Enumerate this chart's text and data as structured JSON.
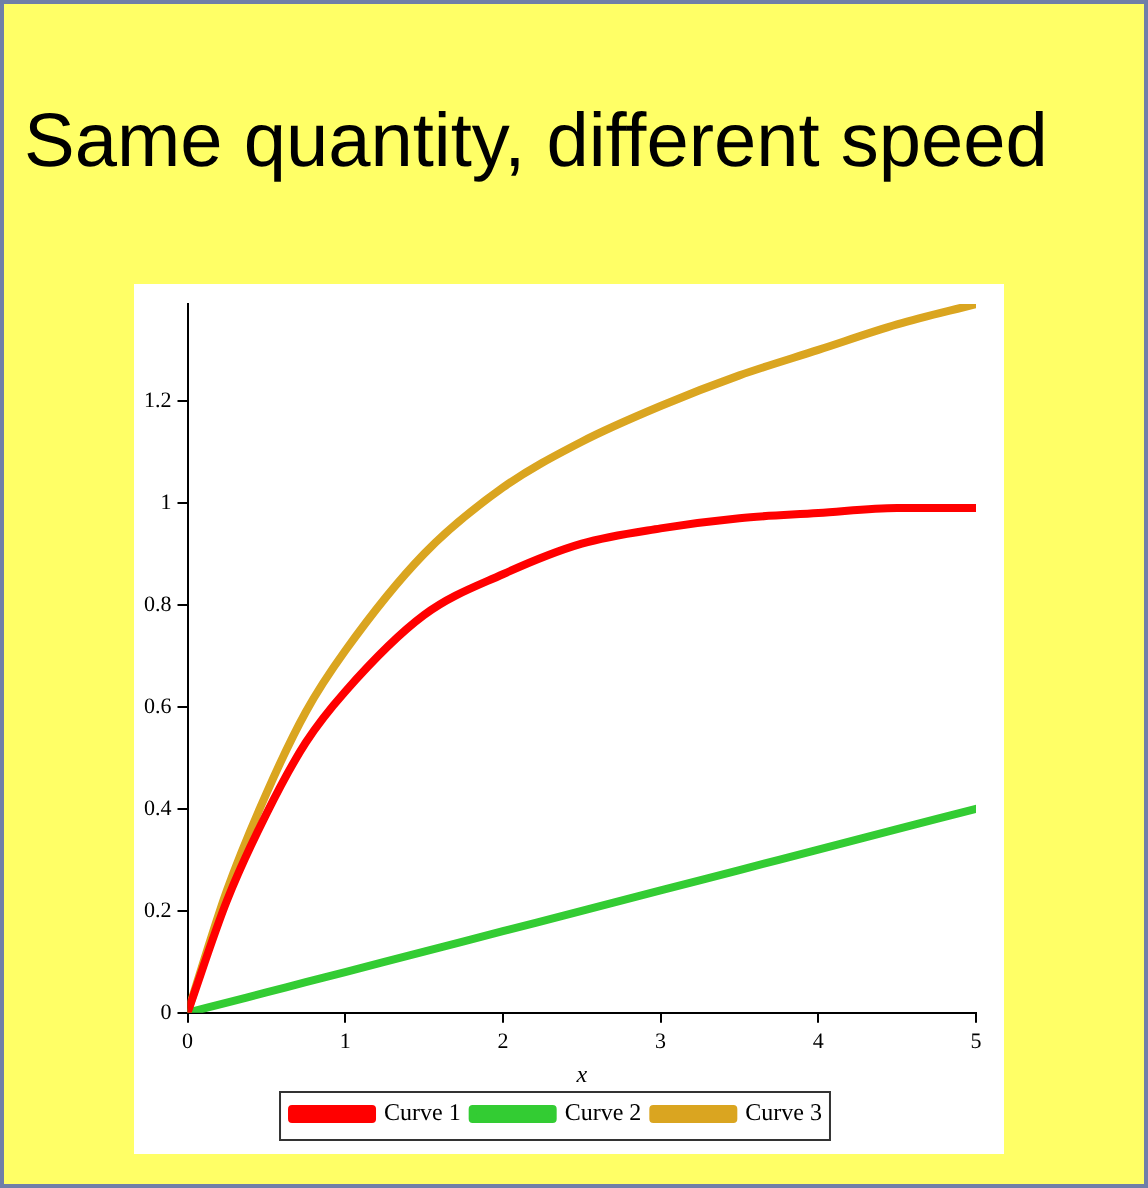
{
  "chart_data": {
    "type": "line",
    "title": "Same quantity, different speed",
    "xlabel": "x",
    "x": [
      0,
      0.25,
      0.5,
      0.75,
      1,
      1.5,
      2,
      2.5,
      3,
      3.5,
      4,
      4.5,
      5
    ],
    "series": [
      {
        "name": "Curve 1",
        "color": "#ff0000",
        "values": [
          0,
          0.22,
          0.39,
          0.53,
          0.63,
          0.78,
          0.86,
          0.92,
          0.95,
          0.97,
          0.98,
          0.99,
          0.99
        ]
      },
      {
        "name": "Curve 2",
        "color": "#33cc33",
        "values": [
          0,
          0.02,
          0.04,
          0.06,
          0.08,
          0.12,
          0.16,
          0.2,
          0.24,
          0.28,
          0.32,
          0.36,
          0.4
        ]
      },
      {
        "name": "Curve 3",
        "color": "#daa520",
        "values": [
          0,
          0.24,
          0.43,
          0.59,
          0.71,
          0.9,
          1.03,
          1.12,
          1.19,
          1.25,
          1.3,
          1.35,
          1.39
        ]
      }
    ],
    "xlim": [
      0,
      5
    ],
    "xticks": [
      0,
      1,
      2,
      3,
      4,
      5
    ],
    "ylim": [
      0,
      1.39
    ],
    "yticks": [
      0,
      0.2,
      0.4,
      0.6,
      0.8,
      1,
      1.2
    ],
    "grid": false,
    "legend": "bottom",
    "marker": "none",
    "line_style": "solid"
  }
}
